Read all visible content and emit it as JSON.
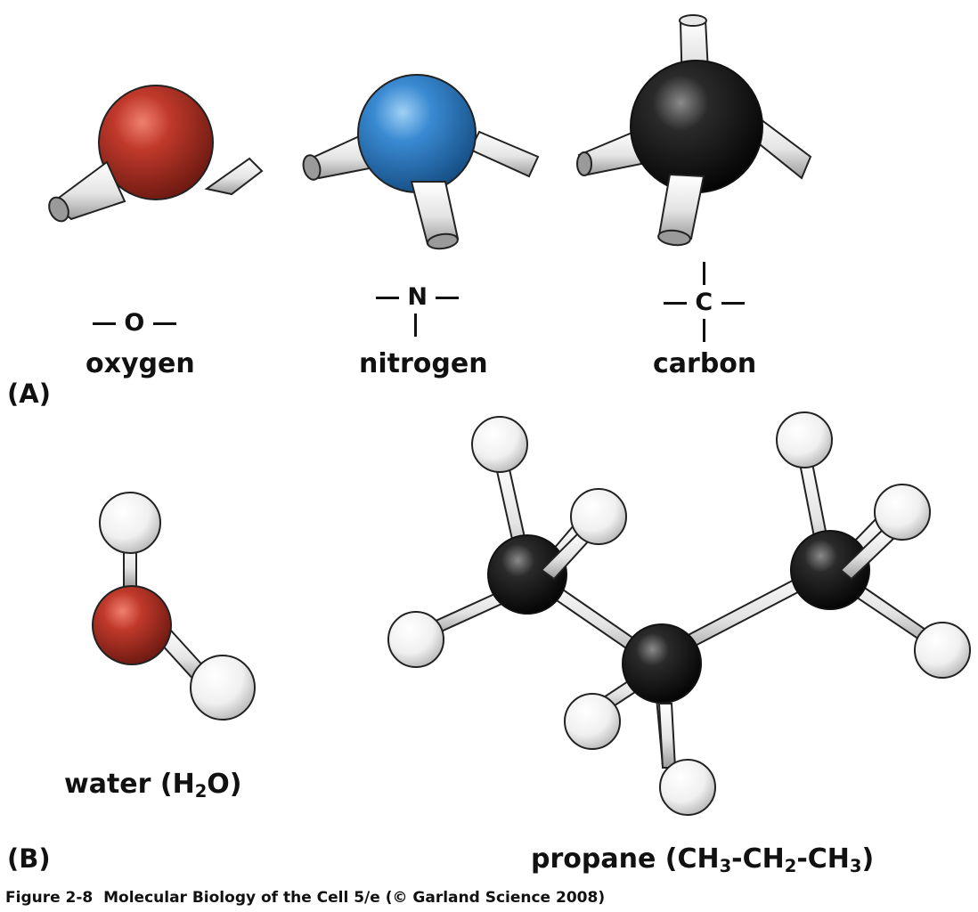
{
  "panels": {
    "a": "(A)",
    "b": "(B)"
  },
  "atoms": {
    "oxygen": {
      "name": "oxygen",
      "symbol": "O",
      "color": "#b02a1e"
    },
    "nitrogen": {
      "name": "nitrogen",
      "symbol": "N",
      "color": "#2f7fc8"
    },
    "carbon": {
      "name": "carbon",
      "symbol": "C",
      "color": "#1a1a1a"
    },
    "hydrogen": {
      "color": "#f2f2f2"
    }
  },
  "water": {
    "name": "water (",
    "h": "H",
    "sub2": "2",
    "o": "O)"
  },
  "propane": {
    "name": "propane (",
    "ch3a": "CH",
    "sub3a": "3",
    "sep1": "-CH",
    "sub2": "2",
    "sep2": "-CH",
    "sub3b": "3",
    "end": ")"
  },
  "caption": {
    "figure": "Figure 2-8",
    "text": "Molecular Biology of the Cell 5/e (© Garland Science 2008)"
  }
}
